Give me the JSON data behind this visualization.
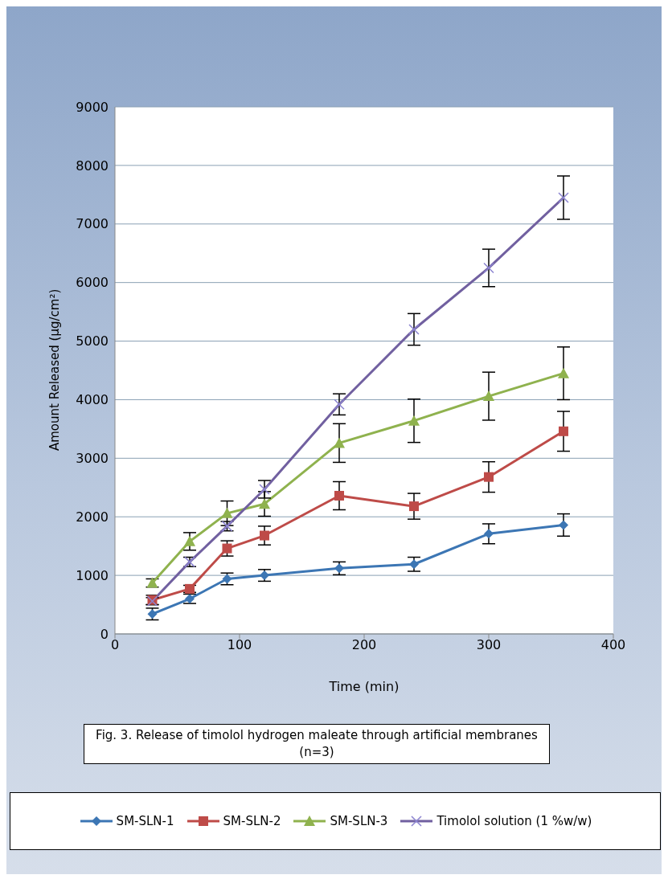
{
  "chart_data": {
    "type": "line",
    "xlabel": "Time (min)",
    "ylabel": "Amount Released (µg/cm²)",
    "annotations": [
      "Fig. 3. Release of timolol hydrogen maleate through artificial membranes (n=3)"
    ],
    "x": [
      30,
      60,
      90,
      120,
      180,
      240,
      300,
      360
    ],
    "xlim": [
      0,
      400
    ],
    "xticks": [
      0,
      100,
      200,
      300,
      400
    ],
    "ylim": [
      0,
      9000
    ],
    "yticks": [
      0,
      1000,
      2000,
      3000,
      4000,
      5000,
      6000,
      7000,
      8000,
      9000
    ],
    "grid": "y",
    "legend": "bottom",
    "line_style": "solid",
    "series": [
      {
        "name": "SM-SLN-1",
        "color": "#3c76b4",
        "marker": "diamond",
        "values": [
          340,
          600,
          940,
          1000,
          1120,
          1190,
          1710,
          1860
        ],
        "errors": [
          100,
          80,
          100,
          100,
          110,
          120,
          170,
          190
        ]
      },
      {
        "name": "SM-SLN-2",
        "color": "#be4b48",
        "marker": "square",
        "values": [
          580,
          770,
          1460,
          1680,
          2360,
          2180,
          2680,
          3460
        ],
        "errors": [
          80,
          60,
          130,
          160,
          240,
          220,
          260,
          340
        ]
      },
      {
        "name": "SM-SLN-3",
        "color": "#8fb24e",
        "marker": "triangle",
        "values": [
          870,
          1580,
          2060,
          2220,
          3260,
          3640,
          4060,
          4450
        ],
        "errors": [
          70,
          150,
          210,
          210,
          330,
          370,
          410,
          450
        ]
      },
      {
        "name": "Timolol solution (1 %w/w)",
        "color": "#7160a0",
        "marker": "cross",
        "values": [
          560,
          1230,
          1840,
          2470,
          3920,
          5200,
          6250,
          7450
        ],
        "errors": [
          60,
          80,
          80,
          150,
          180,
          270,
          320,
          370
        ]
      }
    ]
  }
}
